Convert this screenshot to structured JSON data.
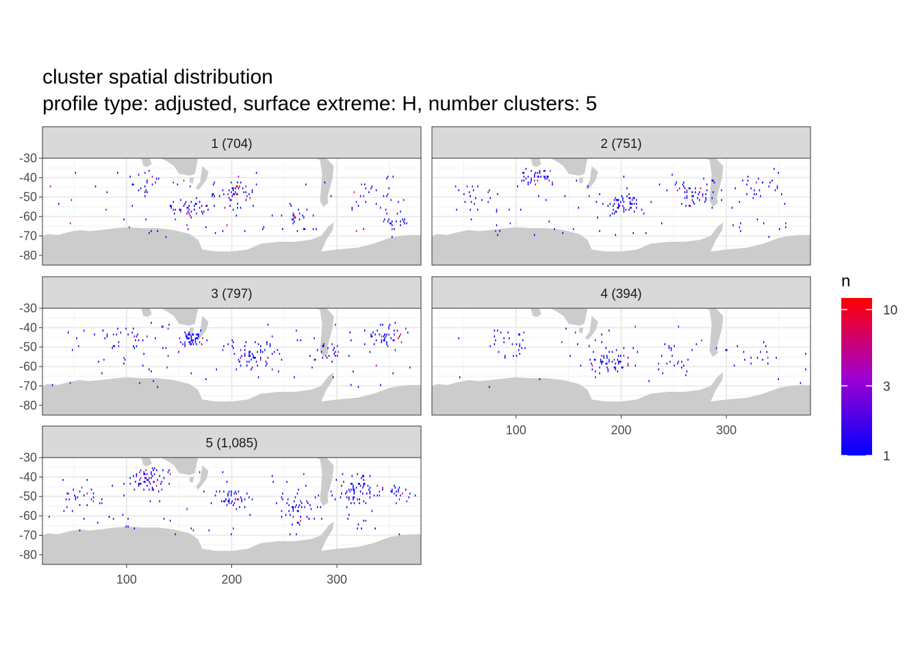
{
  "chart_data": {
    "type": "heatmap",
    "title": "cluster spatial distribution",
    "subtitle": "profile type: adjusted, surface extreme: H, number clusters: 5",
    "xlim": [
      20,
      380
    ],
    "ylim": [
      -85,
      -30
    ],
    "x_ticks": [
      100,
      200,
      300
    ],
    "x_tick_labels": [
      "100",
      "200",
      "300"
    ],
    "y_ticks": [
      -30,
      -40,
      -50,
      -60,
      -70,
      -80
    ],
    "y_tick_labels": [
      "-30",
      "-40",
      "-50",
      "-60",
      "-70",
      "-80"
    ],
    "grid": true,
    "facets": [
      {
        "label": "1 (704)",
        "cluster": 1,
        "count": 704
      },
      {
        "label": "2 (751)",
        "cluster": 2,
        "count": 751
      },
      {
        "label": "3 (797)",
        "cluster": 3,
        "count": 797
      },
      {
        "label": "4 (394)",
        "cluster": 4,
        "count": 394
      },
      {
        "label": "5 (1,085)",
        "cluster": 5,
        "count": 1085
      }
    ],
    "legend": {
      "title": "n",
      "scale": "log",
      "range": [
        1,
        12
      ],
      "breaks": [
        1,
        3,
        10
      ],
      "break_labels": [
        "1",
        "3",
        "10"
      ],
      "low_color": "#0000ff",
      "high_color": "#ff0000",
      "placement": "right"
    },
    "colors": {
      "land": "#cccccc",
      "strip": "#d9d9d9",
      "grid": "#ebebeb",
      "panel_border": "#333333",
      "text": "#4d4d4d"
    }
  }
}
